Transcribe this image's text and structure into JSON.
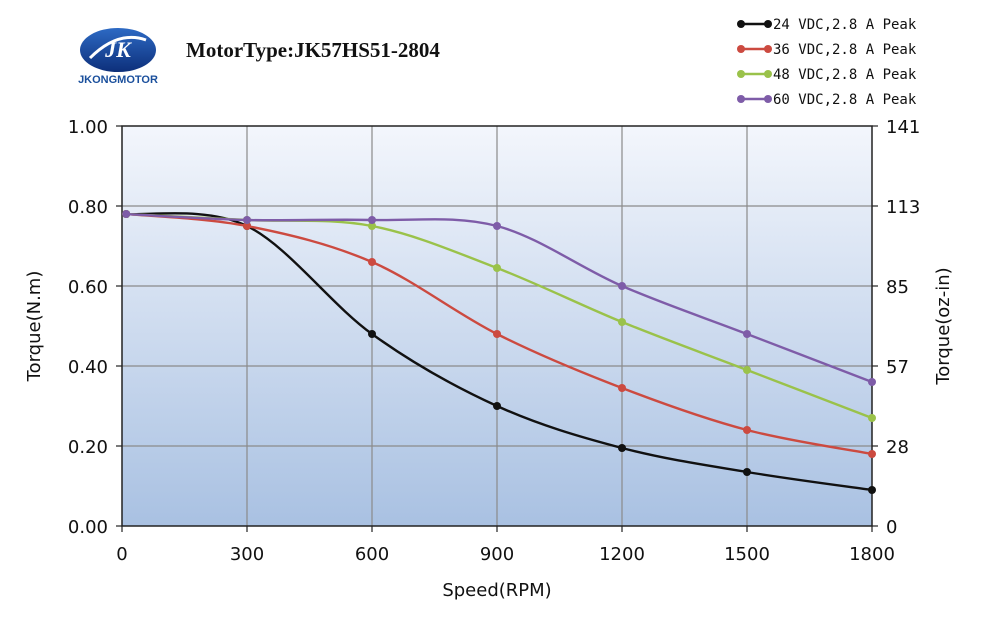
{
  "logo": {
    "brand": "JKONGMOTOR",
    "mark": "JK"
  },
  "chart_data": {
    "type": "line",
    "title": "MotorType:JK57HS51-2804",
    "xlabel": "Speed(RPM)",
    "ylabel": "Torque(N.m)",
    "y2label": "Torque(oz-in)",
    "xlim": [
      0,
      1800
    ],
    "ylim": [
      0,
      1.0
    ],
    "x_ticks": [
      "0",
      "300",
      "600",
      "900",
      "1200",
      "1500",
      "1800"
    ],
    "y_ticks": [
      "0.00",
      "0.20",
      "0.40",
      "0.60",
      "0.80",
      "1.00"
    ],
    "y2_ticks": [
      "0",
      "28",
      "57",
      "85",
      "113",
      "141"
    ],
    "grid": true,
    "legend_position": "top-right",
    "series": [
      {
        "name": "24 VDC,2.8 A Peak",
        "color": "#111111",
        "x": [
          10,
          300,
          600,
          900,
          1200,
          1500,
          1800
        ],
        "values": [
          0.78,
          0.75,
          0.48,
          0.3,
          0.195,
          0.135,
          0.09
        ]
      },
      {
        "name": "36 VDC,2.8 A Peak",
        "color": "#cc4a40",
        "x": [
          10,
          300,
          600,
          900,
          1200,
          1500,
          1800
        ],
        "values": [
          0.78,
          0.75,
          0.66,
          0.48,
          0.345,
          0.24,
          0.18
        ]
      },
      {
        "name": "48 VDC,2.8 A Peak",
        "color": "#9ac24a",
        "x": [
          10,
          300,
          600,
          900,
          1200,
          1500,
          1800
        ],
        "values": [
          0.78,
          0.765,
          0.75,
          0.645,
          0.51,
          0.39,
          0.27
        ]
      },
      {
        "name": "60 VDC,2.8 A Peak",
        "color": "#7e5ca8",
        "x": [
          10,
          300,
          600,
          900,
          1200,
          1500,
          1800
        ],
        "values": [
          0.78,
          0.765,
          0.765,
          0.75,
          0.6,
          0.48,
          0.36
        ]
      }
    ]
  }
}
